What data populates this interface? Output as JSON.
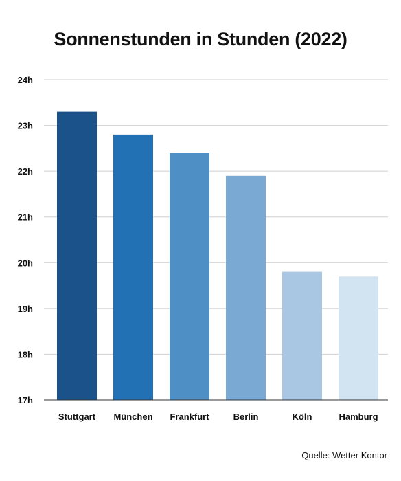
{
  "chart_data": {
    "type": "bar",
    "title": "Sonnenstunden in Stunden (2022)",
    "categories": [
      "Stuttgart",
      "München",
      "Frankfurt",
      "Berlin",
      "Köln",
      "Hamburg"
    ],
    "values": [
      23.3,
      22.8,
      22.4,
      21.9,
      19.8,
      19.7
    ],
    "colors": [
      "#1a5289",
      "#2271b5",
      "#4e8fc6",
      "#7aaad4",
      "#a9c7e3",
      "#d2e3f1"
    ],
    "ylim": [
      17,
      24
    ],
    "yticks": [
      17,
      18,
      19,
      20,
      21,
      22,
      23,
      24
    ],
    "ytick_labels": [
      "17h",
      "18h",
      "19h",
      "20h",
      "21h",
      "22h",
      "23h",
      "24h"
    ],
    "xlabel": "",
    "ylabel": "",
    "grid": true,
    "source": "Quelle: Wetter Kontor"
  }
}
